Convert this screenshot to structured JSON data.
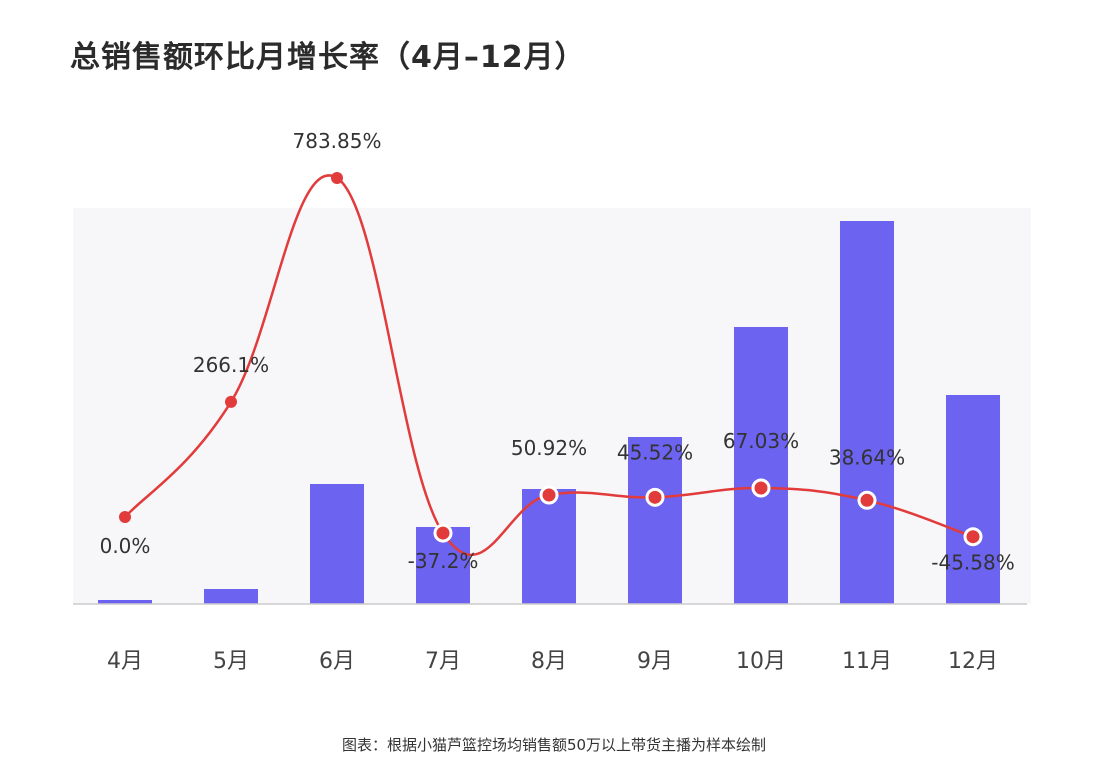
{
  "title": "总销售额环比月增长率（4月–12月）",
  "caption": "图表：根据小猫芦篮控场均销售额50万以上带货主播为样本绘制",
  "colors": {
    "bar": "#6c63f0",
    "line": "#e23b3b",
    "axis": "#cccccc",
    "text": "#333333",
    "tick": "#444444"
  },
  "chart_data": {
    "type": "bar",
    "categories": [
      "4月",
      "5月",
      "6月",
      "7月",
      "8月",
      "9月",
      "10月",
      "11月",
      "12月"
    ],
    "bar_values": [
      4,
      15,
      120,
      77,
      115,
      167,
      277,
      383,
      209
    ],
    "growth_rate": [
      0.0,
      266.1,
      783.85,
      -37.2,
      50.92,
      45.52,
      67.03,
      38.64,
      -45.58
    ],
    "growth_labels": [
      "0.0%",
      "266.1%",
      "783.85%",
      "-37.2%",
      "50.92%",
      "45.52%",
      "67.03%",
      "38.64%",
      "-45.58%"
    ],
    "grid": false
  }
}
